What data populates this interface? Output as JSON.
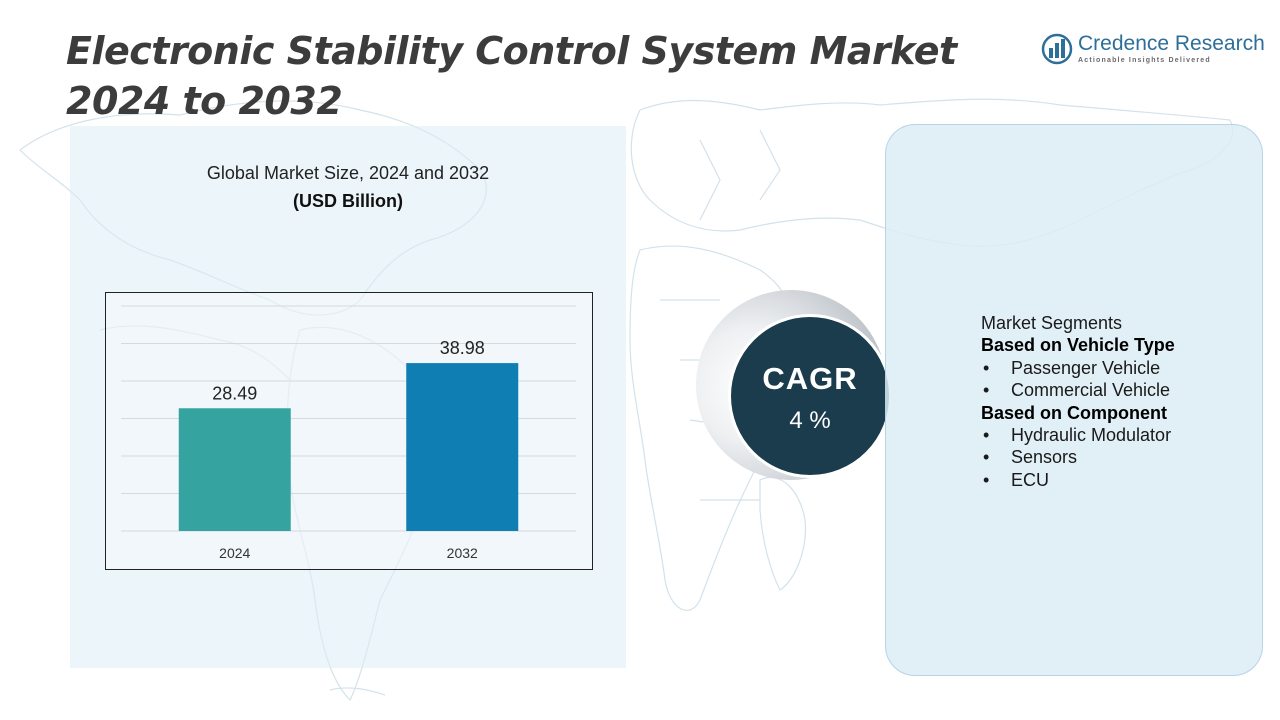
{
  "title": "Electronic Stability Control System Market 2024 to 2032",
  "logo": {
    "name": "Credence Research",
    "tagline": "Actionable Insights Delivered",
    "icon": "bar-chart-globe-icon",
    "color": "#2d6f99"
  },
  "chart_data": {
    "type": "bar",
    "title": "Global Market Size, 2024 and 2032",
    "unit_label": "(USD Billion)",
    "categories": [
      "2024",
      "2032"
    ],
    "values": [
      28.49,
      38.98
    ],
    "value_labels": [
      "28.49",
      "38.98"
    ],
    "colors": [
      "#35a3a0",
      "#0f7fb3"
    ],
    "ylim": [
      0,
      52
    ],
    "grid": true,
    "legend": "none"
  },
  "cagr": {
    "label": "CAGR",
    "value": "4 %"
  },
  "segments": {
    "heading": "Market Segments",
    "groups": [
      {
        "title": "Based on Vehicle Type",
        "items": [
          "Passenger Vehicle",
          "Commercial Vehicle"
        ]
      },
      {
        "title": "Based on Component",
        "items": [
          "Hydraulic Modulator",
          "Sensors",
          "ECU"
        ]
      }
    ]
  }
}
